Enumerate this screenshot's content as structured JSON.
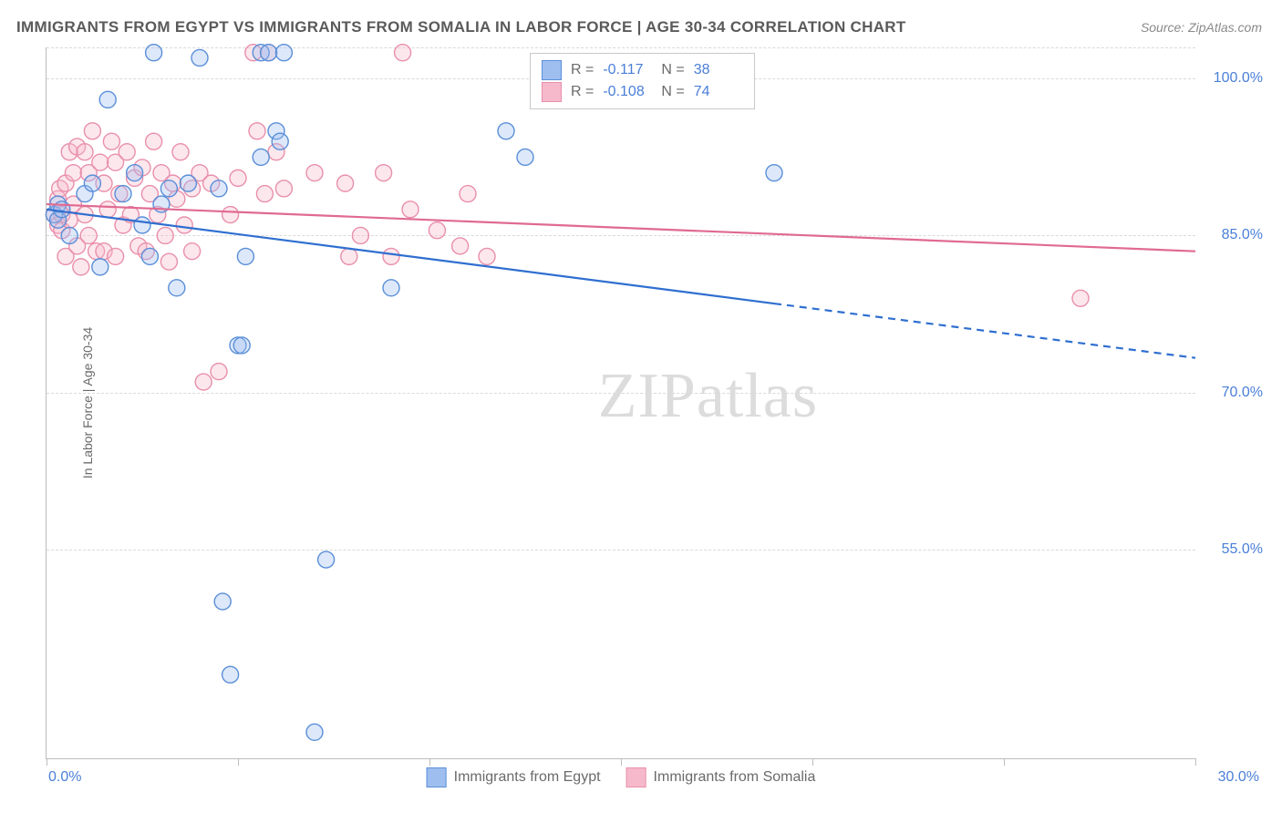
{
  "title": "IMMIGRANTS FROM EGYPT VS IMMIGRANTS FROM SOMALIA IN LABOR FORCE | AGE 30-34 CORRELATION CHART",
  "source": "Source: ZipAtlas.com",
  "ylabel": "In Labor Force | Age 30-34",
  "watermark_a": "ZIP",
  "watermark_b": "atlas",
  "chart": {
    "type": "scatter-with-regression",
    "background_color": "#ffffff",
    "grid_color": "#d9d9d9",
    "axis_color": "#bdbdbd",
    "xlim": [
      0,
      30
    ],
    "ylim": [
      35,
      103
    ],
    "x_ticks_minor": [
      0,
      5,
      10,
      15,
      20,
      25,
      30
    ],
    "x_tick_labels": [
      {
        "pos": 0,
        "label": "0.0%",
        "align": "left"
      },
      {
        "pos": 30,
        "label": "30.0%",
        "align": "right"
      }
    ],
    "y_gridlines": [
      55,
      70,
      85,
      100,
      103
    ],
    "y_tick_labels": [
      {
        "pos": 55,
        "label": "55.0%"
      },
      {
        "pos": 70,
        "label": "70.0%"
      },
      {
        "pos": 85,
        "label": "85.0%"
      },
      {
        "pos": 100,
        "label": "100.0%"
      }
    ],
    "marker_radius": 9,
    "marker_fill_opacity": 0.35,
    "marker_stroke_width": 1.4,
    "line_width": 2.2,
    "series": [
      {
        "name": "Immigrants from Egypt",
        "color_fill": "#9ebef0",
        "color_stroke": "#5a8fd8",
        "line_color": "#2f6fd0",
        "R": "-0.117",
        "N": "38",
        "regression": {
          "x1": 0,
          "y1": 87.5,
          "x2": 19,
          "y2": 78.5
        },
        "regression_extrap": {
          "x1": 19,
          "y1": 78.5,
          "x2": 30,
          "y2": 73.3
        },
        "points": [
          [
            0.2,
            87
          ],
          [
            0.3,
            88
          ],
          [
            0.3,
            86.5
          ],
          [
            0.4,
            87.5
          ],
          [
            0.6,
            85
          ],
          [
            1.0,
            89
          ],
          [
            1.2,
            90
          ],
          [
            1.4,
            82
          ],
          [
            1.6,
            98
          ],
          [
            2.0,
            89
          ],
          [
            2.3,
            91
          ],
          [
            2.5,
            86
          ],
          [
            2.7,
            83
          ],
          [
            2.8,
            102.5
          ],
          [
            3.0,
            88
          ],
          [
            3.2,
            89.5
          ],
          [
            3.4,
            80
          ],
          [
            3.7,
            90
          ],
          [
            4.0,
            102
          ],
          [
            4.5,
            89.5
          ],
          [
            4.6,
            50
          ],
          [
            4.8,
            43
          ],
          [
            5.0,
            74.5
          ],
          [
            5.1,
            74.5
          ],
          [
            5.2,
            83
          ],
          [
            5.6,
            102.5
          ],
          [
            5.6,
            92.5
          ],
          [
            5.8,
            102.5
          ],
          [
            6.0,
            95
          ],
          [
            6.1,
            94
          ],
          [
            6.2,
            102.5
          ],
          [
            7.0,
            37.5
          ],
          [
            7.3,
            54
          ],
          [
            9.0,
            80
          ],
          [
            12.0,
            95
          ],
          [
            12.5,
            92.5
          ],
          [
            19.0,
            91
          ]
        ]
      },
      {
        "name": "Immigrants from Somalia",
        "color_fill": "#f5b9cb",
        "color_stroke": "#e98fab",
        "line_color": "#e06a92",
        "R": "-0.108",
        "N": "74",
        "regression": {
          "x1": 0,
          "y1": 88,
          "x2": 30,
          "y2": 83.5
        },
        "points": [
          [
            0.2,
            87
          ],
          [
            0.3,
            88.5
          ],
          [
            0.3,
            86
          ],
          [
            0.35,
            89.5
          ],
          [
            0.4,
            87
          ],
          [
            0.4,
            85.5
          ],
          [
            0.5,
            90
          ],
          [
            0.5,
            83
          ],
          [
            0.6,
            93
          ],
          [
            0.6,
            86.5
          ],
          [
            0.7,
            91
          ],
          [
            0.7,
            88
          ],
          [
            0.8,
            93.5
          ],
          [
            0.8,
            84
          ],
          [
            0.9,
            82
          ],
          [
            1.0,
            93
          ],
          [
            1.0,
            87
          ],
          [
            1.1,
            91
          ],
          [
            1.1,
            85
          ],
          [
            1.2,
            95
          ],
          [
            1.3,
            83.5
          ],
          [
            1.4,
            92
          ],
          [
            1.5,
            90
          ],
          [
            1.5,
            83.5
          ],
          [
            1.6,
            87.5
          ],
          [
            1.7,
            94
          ],
          [
            1.8,
            92
          ],
          [
            1.8,
            83
          ],
          [
            1.9,
            89
          ],
          [
            2.0,
            86
          ],
          [
            2.1,
            93
          ],
          [
            2.2,
            87
          ],
          [
            2.3,
            90.5
          ],
          [
            2.4,
            84
          ],
          [
            2.5,
            91.5
          ],
          [
            2.6,
            83.5
          ],
          [
            2.7,
            89
          ],
          [
            2.8,
            94
          ],
          [
            2.9,
            87
          ],
          [
            3.0,
            91
          ],
          [
            3.1,
            85
          ],
          [
            3.2,
            82.5
          ],
          [
            3.3,
            90
          ],
          [
            3.4,
            88.5
          ],
          [
            3.5,
            93
          ],
          [
            3.6,
            86
          ],
          [
            3.8,
            89.5
          ],
          [
            3.8,
            83.5
          ],
          [
            4.0,
            91
          ],
          [
            4.1,
            71
          ],
          [
            4.3,
            90
          ],
          [
            4.5,
            72
          ],
          [
            4.8,
            87
          ],
          [
            5.0,
            90.5
          ],
          [
            5.4,
            102.5
          ],
          [
            5.5,
            95
          ],
          [
            5.7,
            89
          ],
          [
            5.8,
            102.5
          ],
          [
            6.0,
            93
          ],
          [
            6.2,
            89.5
          ],
          [
            7.0,
            91
          ],
          [
            7.8,
            90
          ],
          [
            7.9,
            83
          ],
          [
            8.2,
            85
          ],
          [
            8.8,
            91
          ],
          [
            9.0,
            83
          ],
          [
            9.3,
            102.5
          ],
          [
            9.5,
            87.5
          ],
          [
            10.2,
            85.5
          ],
          [
            10.8,
            84
          ],
          [
            11.0,
            89
          ],
          [
            11.5,
            83
          ],
          [
            27.0,
            79
          ]
        ]
      }
    ]
  },
  "legend_top": {
    "r_label": "R  =",
    "n_label": "N  ="
  },
  "colors": {
    "title_text": "#5a5a5a",
    "source_text": "#8a8a8a",
    "axis_text": "#6a6a6a",
    "value_text": "#4a7fd8"
  }
}
